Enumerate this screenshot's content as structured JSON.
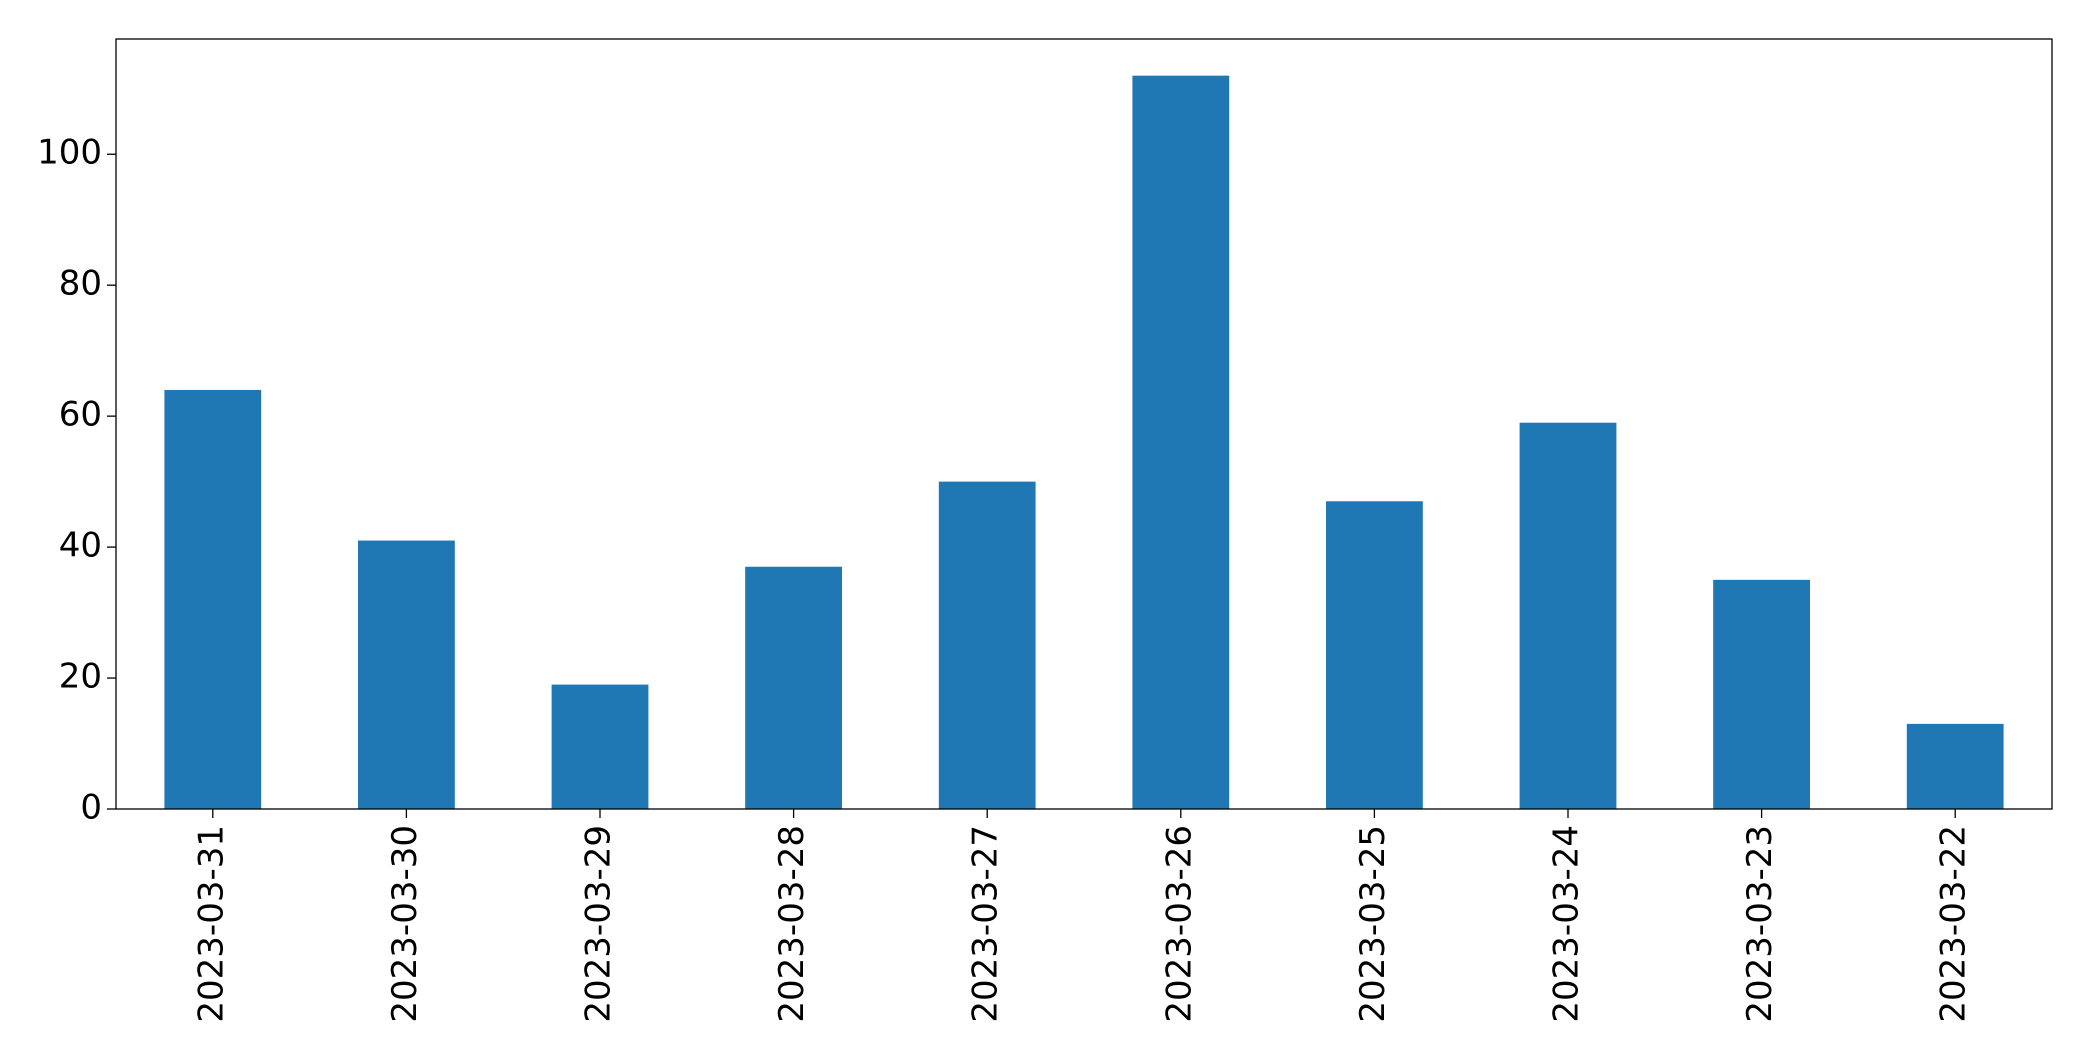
{
  "chart_data": {
    "type": "bar",
    "categories": [
      "2023-03-31",
      "2023-03-30",
      "2023-03-29",
      "2023-03-28",
      "2023-03-27",
      "2023-03-26",
      "2023-03-25",
      "2023-03-24",
      "2023-03-23",
      "2023-03-22"
    ],
    "values": [
      64,
      41,
      19,
      37,
      50,
      112,
      47,
      59,
      35,
      13
    ],
    "color": "#1f77b4",
    "ylim": [
      0,
      117.6
    ],
    "yticks": [
      0,
      20,
      40,
      60,
      80,
      100
    ],
    "grid": false
  }
}
